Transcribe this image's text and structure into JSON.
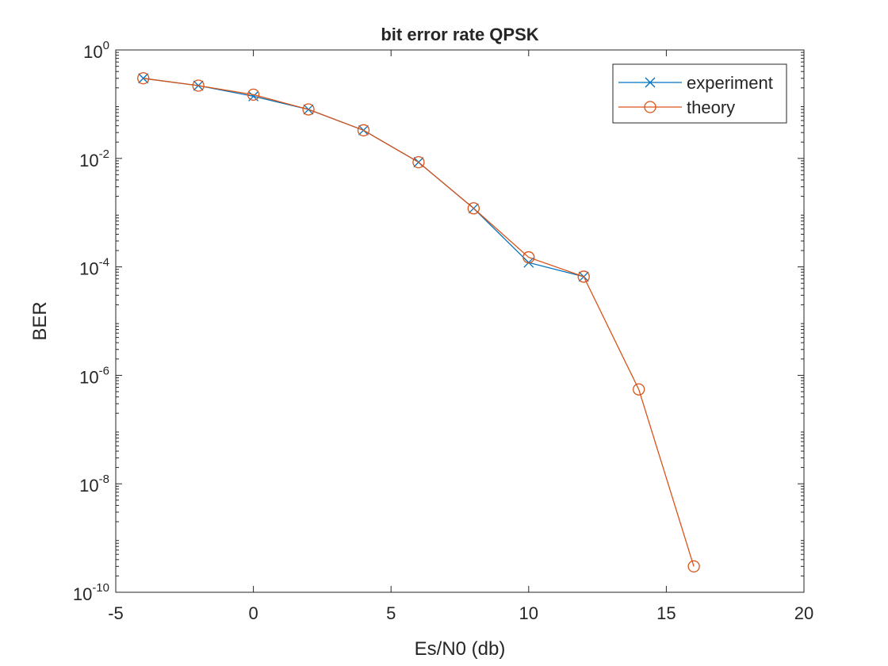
{
  "chart_data": {
    "type": "line",
    "title": "bit error rate QPSK",
    "xlabel": "Es/N0 (db)",
    "ylabel": "BER",
    "xlim": [
      -5,
      20
    ],
    "ylim": [
      1e-10,
      1
    ],
    "yscale": "log",
    "grid": false,
    "legend_position": "top-right",
    "xticks": [
      -5,
      0,
      5,
      10,
      15,
      20
    ],
    "xtick_labels": [
      "-5",
      "0",
      "5",
      "10",
      "15",
      "20"
    ],
    "yticks": [
      1e-10,
      1e-08,
      1e-06,
      0.0001,
      0.01,
      1
    ],
    "ytick_labels": [
      {
        "base": "10",
        "exp": "-10"
      },
      {
        "base": "10",
        "exp": "-8"
      },
      {
        "base": "10",
        "exp": "-6"
      },
      {
        "base": "10",
        "exp": "-4"
      },
      {
        "base": "10",
        "exp": "-2"
      },
      {
        "base": "10",
        "exp": "0"
      }
    ],
    "series": [
      {
        "name": "experiment",
        "marker": "x",
        "color": "#0072BD",
        "x": [
          -4,
          -2,
          0,
          2,
          4,
          6,
          8,
          10,
          12
        ],
        "y": [
          0.3,
          0.22,
          0.14,
          0.08,
          0.033,
          0.0085,
          0.0012,
          0.00012,
          6.6e-05
        ]
      },
      {
        "name": "theory",
        "marker": "o",
        "color": "#D95319",
        "x": [
          -4,
          -2,
          0,
          2,
          4,
          6,
          8,
          10,
          12,
          14,
          16
        ],
        "y": [
          0.3,
          0.22,
          0.15,
          0.08,
          0.033,
          0.0085,
          0.0012,
          0.00015,
          6.6e-05,
          5.5e-07,
          3e-10
        ]
      }
    ]
  }
}
